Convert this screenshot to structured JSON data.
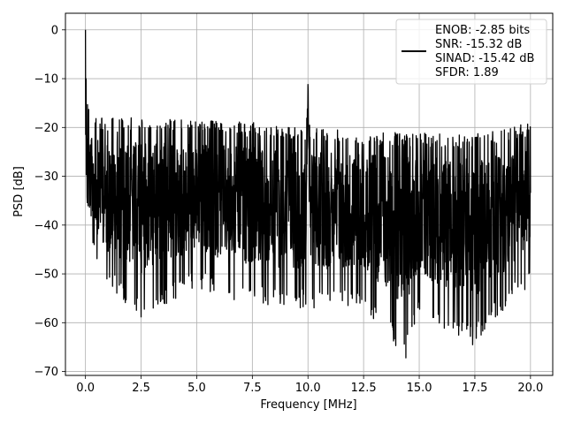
{
  "chart_data": {
    "type": "line",
    "title": "",
    "xlabel": "Frequency [MHz]",
    "ylabel": "PSD [dB]",
    "xlim": [
      -0.9,
      21.0
    ],
    "ylim": [
      -70.8,
      3.4
    ],
    "xticks": [
      0.0,
      2.5,
      5.0,
      7.5,
      10.0,
      12.5,
      15.0,
      17.5,
      20.0
    ],
    "xtick_labels": [
      "0.0",
      "2.5",
      "5.0",
      "7.5",
      "10.0",
      "12.5",
      "15.0",
      "17.5",
      "20.0"
    ],
    "yticks": [
      0,
      -10,
      -20,
      -30,
      -40,
      -50,
      -60,
      -70
    ],
    "ytick_labels": [
      "0",
      "−10",
      "−20",
      "−30",
      "−40",
      "−50",
      "−60",
      "−70"
    ],
    "grid": true,
    "legend_position": "top-right",
    "line_color": "#000000",
    "series": [
      {
        "description": "noise-like PSD: peak near 0 MHz at 0 dB, tone at 10 MHz near -11 dB",
        "x": [
          0.0,
          0.05,
          0.1,
          0.2,
          0.5,
          1.0,
          2.5,
          5.0,
          7.5,
          9.9,
          10.0,
          10.1,
          12.5,
          14.4,
          15.0,
          17.4,
          20.0
        ],
        "upper": [
          0.0,
          -13.5,
          -14.0,
          -17.0,
          -17.5,
          -18.0,
          -18.0,
          -18.5,
          -19.0,
          -20.0,
          -11.2,
          -20.0,
          -20.5,
          -21.0,
          -21.0,
          -21.5,
          -19.0
        ],
        "lower": [
          -22.0,
          -45.0,
          -45.0,
          -44.0,
          -48.0,
          -53.0,
          -58.8,
          -53.0,
          -56.5,
          -57.0,
          -11.2,
          -57.0,
          -57.0,
          -67.2,
          -58.5,
          -64.5,
          -52.0
        ]
      }
    ],
    "legend_lines": [
      "ENOB: -2.85 bits",
      "SNR: -15.32 dB",
      "SINAD: -15.42 dB",
      "SFDR: 1.89"
    ]
  }
}
